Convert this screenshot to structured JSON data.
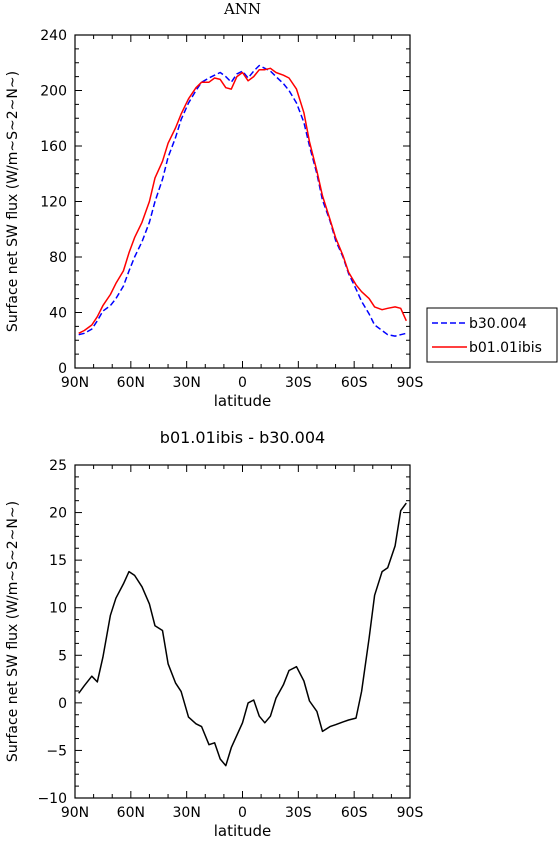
{
  "chart_data": [
    {
      "type": "line",
      "title": "ANN",
      "xlabel": "latitude",
      "ylabel": "Surface net SW flux (W/m~S~2~N~)",
      "xlim": [
        -90,
        90
      ],
      "ylim": [
        0,
        240
      ],
      "x_ticks": [
        -90,
        -60,
        -30,
        0,
        30,
        60,
        90
      ],
      "x_tick_labels": [
        "90N",
        "60N",
        "30N",
        "0",
        "30S",
        "60S",
        "90S"
      ],
      "y_ticks": [
        0,
        40,
        80,
        120,
        160,
        200,
        240
      ],
      "y_tick_labels": [
        "0",
        "40",
        "80",
        "120",
        "160",
        "200",
        "240"
      ],
      "legend_position": "right",
      "series": [
        {
          "name": "b30.004",
          "color": "#0000ff",
          "dash": "dashed",
          "x": [
            -88,
            -85,
            -81,
            -78,
            -75,
            -71,
            -68,
            -64,
            -61,
            -58,
            -54,
            -50,
            -47,
            -43,
            -40,
            -36,
            -33,
            -29,
            -25,
            -22,
            -18,
            -15,
            -12,
            -9,
            -6,
            -3,
            0,
            3,
            6,
            9,
            12,
            15,
            18,
            22,
            25,
            29,
            33,
            36,
            40,
            43,
            47,
            50,
            54,
            57,
            61,
            64,
            68,
            71,
            75,
            78,
            82,
            85,
            88
          ],
          "y": [
            24,
            25,
            28,
            34,
            41,
            45,
            50,
            59,
            70,
            80,
            91,
            105,
            120,
            136,
            152,
            166,
            179,
            191,
            200,
            206,
            209,
            211,
            213,
            210,
            206,
            212,
            214,
            209,
            214,
            218,
            216,
            214,
            210,
            205,
            200,
            191,
            177,
            160,
            140,
            121,
            106,
            92,
            80,
            68,
            57,
            48,
            39,
            31,
            27,
            24,
            23,
            24,
            25
          ]
        },
        {
          "name": "b01.01ibis",
          "color": "#ff0000",
          "dash": "solid",
          "x": [
            -88,
            -85,
            -81,
            -78,
            -75,
            -71,
            -68,
            -64,
            -61,
            -58,
            -54,
            -50,
            -47,
            -43,
            -40,
            -36,
            -33,
            -29,
            -25,
            -22,
            -18,
            -15,
            -12,
            -9,
            -6,
            -3,
            0,
            3,
            6,
            9,
            12,
            15,
            18,
            22,
            25,
            29,
            33,
            36,
            40,
            43,
            47,
            50,
            54,
            57,
            61,
            64,
            68,
            71,
            75,
            78,
            82,
            85,
            88
          ],
          "y": [
            25,
            27,
            31,
            37,
            45,
            53,
            61,
            70,
            83,
            94,
            105,
            120,
            137,
            149,
            162,
            173,
            183,
            194,
            202,
            206,
            206,
            209,
            208,
            202,
            201,
            210,
            213,
            207,
            210,
            215,
            215,
            216,
            213,
            211,
            209,
            201,
            184,
            163,
            142,
            124,
            107,
            94,
            81,
            69,
            60,
            55,
            50,
            44,
            42,
            43,
            44,
            43,
            34
          ]
        }
      ]
    },
    {
      "type": "line",
      "title": "b01.01ibis - b30.004",
      "xlabel": "latitude",
      "ylabel": "Surface net SW flux (W/m~S~2~N~)",
      "xlim": [
        -90,
        90
      ],
      "ylim": [
        -10,
        25
      ],
      "x_ticks": [
        -90,
        -60,
        -30,
        0,
        30,
        60,
        90
      ],
      "x_tick_labels": [
        "90N",
        "60N",
        "30N",
        "0",
        "30S",
        "60S",
        "90S"
      ],
      "y_ticks": [
        -10,
        -5,
        0,
        5,
        10,
        15,
        20,
        25
      ],
      "y_tick_labels": [
        "−10",
        "−5",
        "0",
        "5",
        "10",
        "15",
        "20",
        "25"
      ],
      "series": [
        {
          "color": "#000000",
          "dash": "solid",
          "x": [
            -88,
            -85,
            -81,
            -78,
            -75,
            -71,
            -68,
            -64,
            -61,
            -58,
            -54,
            -50,
            -47,
            -43,
            -40,
            -36,
            -33,
            -29,
            -25,
            -22,
            -18,
            -15,
            -12,
            -9,
            -6,
            -3,
            0,
            3,
            6,
            9,
            12,
            15,
            18,
            22,
            25,
            29,
            33,
            36,
            40,
            43,
            47,
            50,
            54,
            57,
            61,
            64,
            68,
            71,
            75,
            78,
            82,
            85,
            88
          ],
          "y": [
            1.0,
            1.8,
            2.8,
            2.2,
            4.8,
            9.2,
            11.0,
            12.5,
            13.8,
            13.4,
            12.2,
            10.4,
            8.1,
            7.6,
            4.1,
            2.1,
            1.2,
            -1.5,
            -2.2,
            -2.5,
            -4.4,
            -4.2,
            -5.9,
            -6.6,
            -4.7,
            -3.4,
            -2.1,
            0.0,
            0.3,
            -1.4,
            -2.1,
            -1.4,
            0.5,
            1.9,
            3.4,
            3.8,
            2.3,
            0.2,
            -0.9,
            -3.0,
            -2.5,
            -2.3,
            -2.0,
            -1.8,
            -1.6,
            1.2,
            6.8,
            11.3,
            13.8,
            14.2,
            16.5,
            20.2,
            21.0
          ]
        }
      ]
    }
  ]
}
